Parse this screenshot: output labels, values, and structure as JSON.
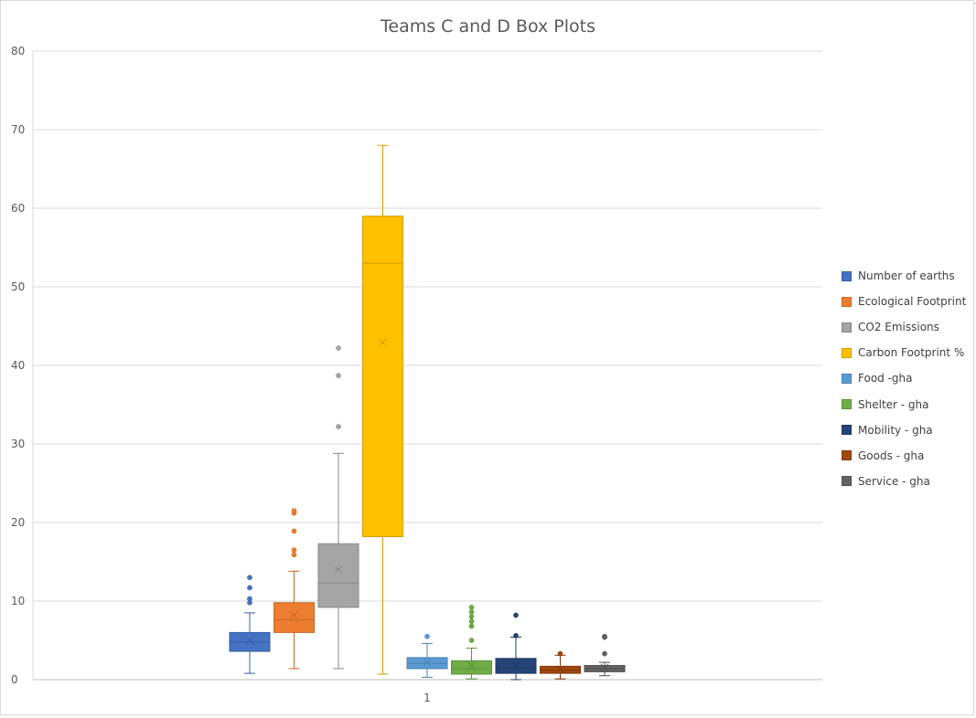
{
  "chart_data": {
    "type": "box",
    "title": "Teams C and D Box Plots",
    "xlabel": "",
    "ylabel": "",
    "categories": [
      "1"
    ],
    "ylim": [
      0,
      80
    ],
    "yticks": [
      0,
      10,
      20,
      30,
      40,
      50,
      60,
      70,
      80
    ],
    "grid": true,
    "legend_position": "right",
    "series": [
      {
        "name": "Number of earths",
        "color": "#4472c4",
        "min": 0.8,
        "q1": 3.6,
        "median": 4.8,
        "q3": 6.0,
        "max": 8.5,
        "mean": 5.0,
        "outliers": [
          9.8,
          10.3,
          11.7,
          13.0
        ]
      },
      {
        "name": "Ecological Footprint",
        "color": "#ed7d31",
        "min": 1.4,
        "q1": 6.0,
        "median": 7.6,
        "q3": 9.8,
        "max": 13.8,
        "mean": 8.2,
        "outliers": [
          15.9,
          16.5,
          18.9,
          21.2,
          21.5
        ]
      },
      {
        "name": "CO2 Emissions",
        "color": "#a5a5a5",
        "min": 1.4,
        "q1": 9.2,
        "median": 12.3,
        "q3": 17.3,
        "max": 28.8,
        "mean": 14.0,
        "outliers": [
          32.2,
          38.7,
          42.2
        ]
      },
      {
        "name": "Carbon Footprint %",
        "color": "#ffc000",
        "min": 0.7,
        "q1": 18.2,
        "median": 53.0,
        "q3": 59.0,
        "max": 68.0,
        "mean": 42.9,
        "outliers": []
      },
      {
        "name": "Food -gha",
        "color": "#5b9bd5",
        "min": 0.3,
        "q1": 1.4,
        "median": 2.1,
        "q3": 2.8,
        "max": 4.6,
        "mean": 2.2,
        "outliers": [
          5.5
        ]
      },
      {
        "name": "Shelter - gha",
        "color": "#70ad47",
        "min": 0.1,
        "q1": 0.7,
        "median": 1.4,
        "q3": 2.4,
        "max": 4.0,
        "mean": 1.8,
        "outliers": [
          5.0,
          6.8,
          7.4,
          8.0,
          8.6,
          9.2
        ]
      },
      {
        "name": "Mobility - gha",
        "color": "#264478",
        "min": 0.0,
        "q1": 0.8,
        "median": 1.5,
        "q3": 2.7,
        "max": 5.4,
        "mean": 1.8,
        "outliers": [
          5.6,
          8.2
        ]
      },
      {
        "name": "Goods - gha",
        "color": "#9e480e",
        "min": 0.1,
        "q1": 0.8,
        "median": 1.2,
        "q3": 1.7,
        "max": 3.1,
        "mean": 1.3,
        "outliers": [
          3.3
        ]
      },
      {
        "name": "Service - gha",
        "color": "#636363",
        "min": 0.5,
        "q1": 1.0,
        "median": 1.4,
        "q3": 1.8,
        "max": 2.2,
        "mean": 1.5,
        "outliers": [
          3.3,
          5.4,
          5.5
        ]
      }
    ]
  }
}
